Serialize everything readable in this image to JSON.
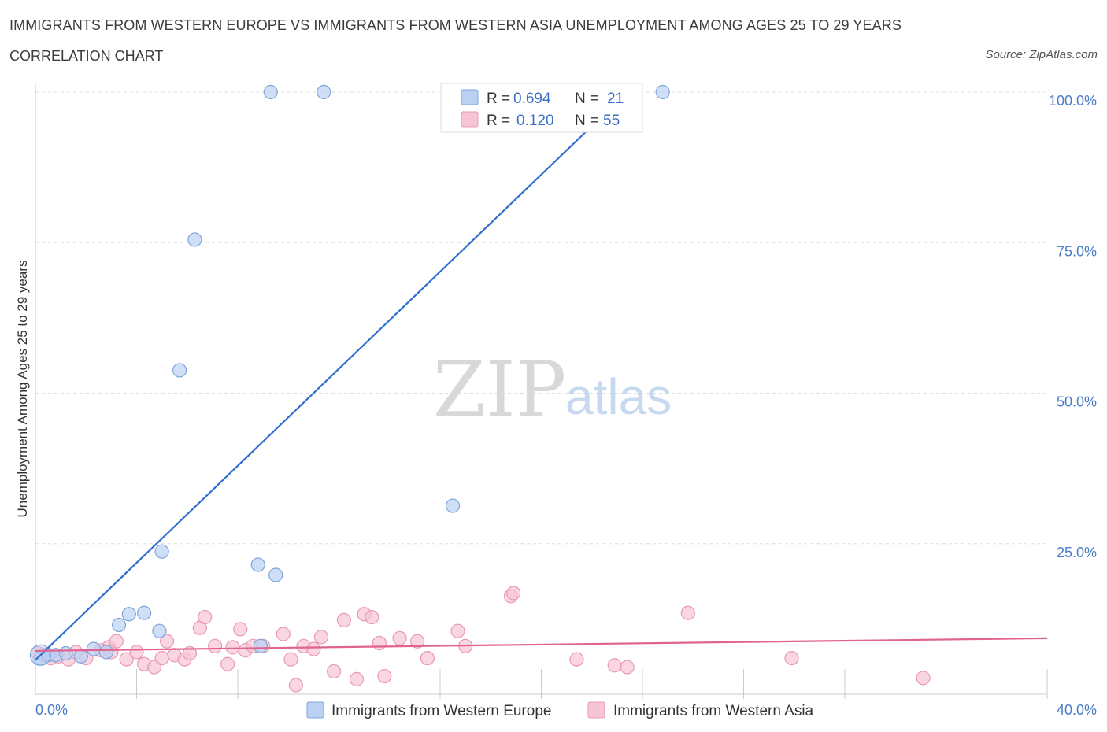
{
  "title": "IMMIGRANTS FROM WESTERN EUROPE VS IMMIGRANTS FROM WESTERN ASIA UNEMPLOYMENT AMONG AGES 25 TO 29 YEARS",
  "subtitle": "CORRELATION CHART",
  "source": "Source: ZipAtlas.com",
  "watermark": {
    "zip": "ZIP",
    "atlas": "atlas"
  },
  "colors": {
    "blue_fill": "#b9d2f3",
    "blue_stroke": "#7fa6dc",
    "blue_line": "#2f6fd0",
    "pink_fill": "#f7c4d4",
    "pink_stroke": "#e99ab4",
    "pink_line": "#e0628f",
    "grid": "#dddddd"
  },
  "legend": {
    "series1": {
      "r_label": "R =",
      "r_value": "0.694",
      "n_label": "N =",
      "n_value": "21"
    },
    "series2": {
      "r_label": "R =",
      "r_value": "0.120",
      "n_label": "N =",
      "n_value": "55"
    }
  },
  "chart_data": {
    "type": "scatter",
    "title": "IMMIGRANTS FROM WESTERN EUROPE VS IMMIGRANTS FROM WESTERN ASIA UNEMPLOYMENT AMONG AGES 25 TO 29 YEARS",
    "xlabel": "",
    "ylabel": "Unemployment Among Ages 25 to 29 years",
    "xlim": [
      0,
      40
    ],
    "ylim": [
      0,
      100
    ],
    "x_tick_labels": [
      "0.0%",
      "40.0%"
    ],
    "y_ticks": [
      25,
      50,
      75,
      100
    ],
    "y_tick_labels": [
      "25.0%",
      "50.0%",
      "75.0%",
      "100.0%"
    ],
    "grid": true,
    "legend_position": "top-center",
    "series": [
      {
        "name": "Immigrants from Western Europe",
        "color": "blue",
        "trend": {
          "x": [
            0,
            23.4
          ],
          "y": [
            5.7,
            100
          ]
        },
        "points": [
          [
            0.2,
            6.0
          ],
          [
            0.5,
            6.5
          ],
          [
            0.8,
            6.5
          ],
          [
            1.2,
            6.8
          ],
          [
            1.8,
            6.3
          ],
          [
            2.3,
            7.5
          ],
          [
            2.8,
            7.0
          ],
          [
            3.3,
            11.5
          ],
          [
            3.7,
            13.3
          ],
          [
            4.3,
            13.5
          ],
          [
            4.9,
            10.5
          ],
          [
            5.0,
            23.7
          ],
          [
            5.7,
            53.8
          ],
          [
            6.3,
            75.5
          ],
          [
            8.8,
            21.5
          ],
          [
            8.9,
            8.0
          ],
          [
            9.5,
            19.8
          ],
          [
            9.3,
            100
          ],
          [
            11.4,
            100
          ],
          [
            16.5,
            31.3
          ],
          [
            24.8,
            100
          ]
        ]
      },
      {
        "name": "Immigrants from Western Asia",
        "color": "pink",
        "trend": {
          "x": [
            0,
            40
          ],
          "y": [
            7.2,
            9.3
          ]
        },
        "points": [
          [
            0.3,
            6.5
          ],
          [
            0.6,
            6.0
          ],
          [
            0.9,
            6.3
          ],
          [
            1.3,
            5.8
          ],
          [
            1.6,
            7.0
          ],
          [
            2.0,
            6.0
          ],
          [
            2.6,
            7.3
          ],
          [
            2.9,
            7.8
          ],
          [
            3.0,
            7.0
          ],
          [
            3.2,
            8.8
          ],
          [
            3.6,
            5.8
          ],
          [
            4.0,
            7.0
          ],
          [
            4.3,
            5.0
          ],
          [
            4.7,
            4.5
          ],
          [
            5.0,
            6.0
          ],
          [
            5.2,
            8.8
          ],
          [
            5.5,
            6.5
          ],
          [
            5.9,
            5.8
          ],
          [
            6.1,
            6.8
          ],
          [
            6.5,
            11.0
          ],
          [
            6.7,
            12.8
          ],
          [
            7.1,
            8.0
          ],
          [
            7.6,
            5.0
          ],
          [
            7.8,
            7.8
          ],
          [
            8.1,
            10.8
          ],
          [
            8.3,
            7.3
          ],
          [
            8.6,
            8.0
          ],
          [
            9.0,
            8.0
          ],
          [
            9.8,
            10.0
          ],
          [
            10.1,
            5.8
          ],
          [
            10.3,
            1.5
          ],
          [
            10.6,
            8.0
          ],
          [
            11.0,
            7.5
          ],
          [
            11.3,
            9.5
          ],
          [
            11.8,
            3.8
          ],
          [
            12.2,
            12.3
          ],
          [
            12.7,
            2.5
          ],
          [
            13.0,
            13.3
          ],
          [
            13.3,
            12.8
          ],
          [
            13.6,
            8.5
          ],
          [
            13.8,
            3.0
          ],
          [
            14.4,
            9.3
          ],
          [
            15.1,
            8.8
          ],
          [
            15.5,
            6.0
          ],
          [
            16.7,
            10.5
          ],
          [
            17.0,
            8.0
          ],
          [
            18.8,
            16.3
          ],
          [
            18.9,
            16.8
          ],
          [
            21.4,
            5.8
          ],
          [
            22.9,
            4.8
          ],
          [
            23.4,
            4.5
          ],
          [
            25.8,
            13.5
          ],
          [
            29.9,
            6.0
          ],
          [
            35.1,
            2.7
          ],
          [
            0.1,
            6.8
          ]
        ]
      }
    ]
  }
}
